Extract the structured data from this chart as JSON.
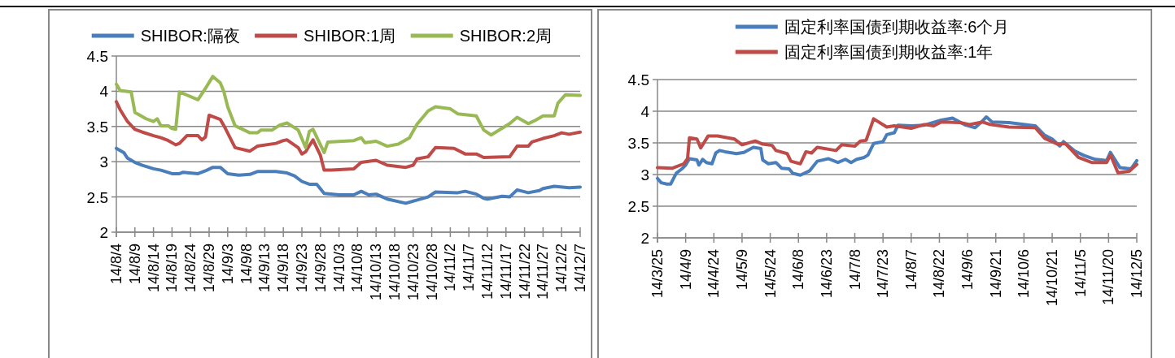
{
  "chart_data": [
    {
      "type": "line",
      "legend": "top",
      "grid": "y",
      "xlim": [
        "--08-04",
        "--12-07"
      ],
      "ylim": [
        2,
        4.5
      ],
      "yticks": [
        2,
        2.5,
        3,
        3.5,
        4,
        4.5
      ],
      "xticks": [
        {
          "value": "--08-04",
          "label": "14/8/4"
        },
        {
          "value": "--08-09",
          "label": "14/8/9"
        },
        {
          "value": "--08-14",
          "label": "14/8/14"
        },
        {
          "value": "--08-19",
          "label": "14/8/19"
        },
        {
          "value": "--08-24",
          "label": "14/8/24"
        },
        {
          "value": "--08-29",
          "label": "14/8/29"
        },
        {
          "value": "--09-03",
          "label": "14/9/3"
        },
        {
          "value": "--09-08",
          "label": "14/9/8"
        },
        {
          "value": "--09-13",
          "label": "14/9/13"
        },
        {
          "value": "--09-18",
          "label": "14/9/18"
        },
        {
          "value": "--09-23",
          "label": "14/9/23"
        },
        {
          "value": "--09-28",
          "label": "14/9/28"
        },
        {
          "value": "--10-03",
          "label": "14/10/3"
        },
        {
          "value": "--10-08",
          "label": "14/10/8"
        },
        {
          "value": "--10-13",
          "label": "14/10/13"
        },
        {
          "value": "--10-18",
          "label": "14/10/18"
        },
        {
          "value": "--10-23",
          "label": "14/10/23"
        },
        {
          "value": "--10-28",
          "label": "14/10/28"
        },
        {
          "value": "--11-02",
          "label": "14/11/2"
        },
        {
          "value": "--11-07",
          "label": "14/11/7"
        },
        {
          "value": "--11-12",
          "label": "14/11/12"
        },
        {
          "value": "--11-17",
          "label": "14/11/17"
        },
        {
          "value": "--11-22",
          "label": "14/11/22"
        },
        {
          "value": "--11-27",
          "label": "14/11/27"
        },
        {
          "value": "--12-02",
          "label": "14/12/2"
        },
        {
          "value": "--12-07",
          "label": "14/12/7"
        }
      ],
      "series": [
        {
          "name": "SHIBOR:隔夜",
          "color": "#4a7ebb",
          "x": [
            "--08-04",
            "--08-06",
            "--08-07",
            "--08-09",
            "--08-11",
            "--08-14",
            "--08-16",
            "--08-19",
            "--08-21",
            "--08-22",
            "--08-26",
            "--08-28",
            "--08-30",
            "--09-01",
            "--09-03",
            "--09-06",
            "--09-09",
            "--09-11",
            "--09-16",
            "--09-19",
            "--09-21",
            "--09-23",
            "--09-25",
            "--09-27",
            "--09-29",
            "--10-03",
            "--10-07",
            "--10-09",
            "--10-11",
            "--10-13",
            "--10-16",
            "--10-21",
            "--10-27",
            "--10-29",
            "--11-04",
            "--11-06",
            "--11-09",
            "--11-11",
            "--11-12",
            "--11-16",
            "--11-18",
            "--11-20",
            "--11-23",
            "--11-26",
            "--11-27",
            "--11-30",
            "--12-04",
            "--12-07"
          ],
          "values": [
            3.19,
            3.13,
            3.05,
            2.99,
            2.95,
            2.9,
            2.88,
            2.83,
            2.83,
            2.85,
            2.83,
            2.87,
            2.92,
            2.92,
            2.83,
            2.81,
            2.82,
            2.86,
            2.86,
            2.84,
            2.8,
            2.72,
            2.68,
            2.68,
            2.55,
            2.53,
            2.53,
            2.58,
            2.53,
            2.54,
            2.47,
            2.41,
            2.5,
            2.57,
            2.56,
            2.58,
            2.54,
            2.48,
            2.47,
            2.51,
            2.5,
            2.6,
            2.56,
            2.59,
            2.62,
            2.65,
            2.63,
            2.64
          ]
        },
        {
          "name": "SHIBOR:1周",
          "color": "#be4b48",
          "x": [
            "--08-04",
            "--08-05",
            "--08-07",
            "--08-09",
            "--08-11",
            "--08-14",
            "--08-16",
            "--08-18",
            "--08-20",
            "--08-21",
            "--08-23",
            "--08-26",
            "--08-27",
            "--08-28",
            "--08-29",
            "--09-01",
            "--09-02",
            "--09-05",
            "--09-09",
            "--09-11",
            "--09-16",
            "--09-18",
            "--09-19",
            "--09-22",
            "--09-23",
            "--09-24",
            "--09-26",
            "--09-28",
            "--09-29",
            "--10-01",
            "--10-07",
            "--10-09",
            "--10-13",
            "--10-16",
            "--10-21",
            "--10-23",
            "--10-24",
            "--10-27",
            "--10-29",
            "--11-03",
            "--11-06",
            "--11-09",
            "--11-11",
            "--11-18",
            "--11-20",
            "--11-23",
            "--11-24",
            "--11-27",
            "--11-30",
            "--12-02",
            "--12-04",
            "--12-07"
          ],
          "values": [
            3.85,
            3.74,
            3.57,
            3.46,
            3.42,
            3.37,
            3.34,
            3.3,
            3.24,
            3.26,
            3.37,
            3.37,
            3.31,
            3.35,
            3.66,
            3.6,
            3.51,
            3.2,
            3.15,
            3.22,
            3.26,
            3.3,
            3.31,
            3.2,
            3.11,
            3.14,
            3.31,
            3.09,
            2.88,
            2.88,
            2.9,
            2.99,
            3.02,
            2.95,
            2.92,
            2.95,
            3.04,
            3.07,
            3.2,
            3.19,
            3.11,
            3.11,
            3.06,
            3.07,
            3.22,
            3.22,
            3.28,
            3.33,
            3.37,
            3.41,
            3.39,
            3.42
          ]
        },
        {
          "name": "SHIBOR:2周",
          "color": "#98b954",
          "x": [
            "--08-04",
            "--08-05",
            "--08-08",
            "--08-09",
            "--08-12",
            "--08-14",
            "--08-15",
            "--08-16",
            "--08-18",
            "--08-19",
            "--08-20",
            "--08-21",
            "--08-26",
            "--08-28",
            "--08-30",
            "--09-01",
            "--09-02",
            "--09-03",
            "--09-05",
            "--09-09",
            "--09-11",
            "--09-12",
            "--09-15",
            "--09-17",
            "--09-19",
            "--09-22",
            "--09-24",
            "--09-25",
            "--09-26",
            "--09-29",
            "--09-30",
            "--10-07",
            "--10-09",
            "--10-10",
            "--10-13",
            "--10-16",
            "--10-19",
            "--10-22",
            "--10-24",
            "--10-27",
            "--10-29",
            "--11-02",
            "--11-04",
            "--11-09",
            "--11-11",
            "--11-13",
            "--11-18",
            "--11-20",
            "--11-23",
            "--11-25",
            "--11-27",
            "--11-30",
            "--12-01",
            "--12-03",
            "--12-07"
          ],
          "values": [
            4.1,
            4.01,
            3.99,
            3.7,
            3.61,
            3.57,
            3.61,
            3.51,
            3.51,
            3.47,
            3.46,
            3.99,
            3.88,
            4.04,
            4.21,
            4.12,
            3.99,
            3.78,
            3.51,
            3.41,
            3.41,
            3.45,
            3.45,
            3.52,
            3.55,
            3.45,
            3.2,
            3.43,
            3.46,
            3.13,
            3.28,
            3.3,
            3.34,
            3.27,
            3.29,
            3.22,
            3.25,
            3.34,
            3.53,
            3.72,
            3.78,
            3.75,
            3.68,
            3.65,
            3.45,
            3.38,
            3.54,
            3.63,
            3.54,
            3.59,
            3.65,
            3.65,
            3.83,
            3.95,
            3.94
          ]
        }
      ]
    },
    {
      "type": "line",
      "legend": "top",
      "grid": "y",
      "xlim": [
        "--03-25",
        "--12-05"
      ],
      "ylim": [
        2,
        4.5
      ],
      "yticks": [
        2,
        2.5,
        3,
        3.5,
        4,
        4.5
      ],
      "xticks": [
        {
          "value": "--03-25",
          "label": "14/3/25"
        },
        {
          "value": "--04-09",
          "label": "14/4/9"
        },
        {
          "value": "--04-24",
          "label": "14/4/24"
        },
        {
          "value": "--05-09",
          "label": "14/5/9"
        },
        {
          "value": "--05-24",
          "label": "14/5/24"
        },
        {
          "value": "--06-08",
          "label": "14/6/8"
        },
        {
          "value": "--06-23",
          "label": "14/6/23"
        },
        {
          "value": "--07-08",
          "label": "14/7/8"
        },
        {
          "value": "--07-23",
          "label": "14/7/23"
        },
        {
          "value": "--08-07",
          "label": "14/8/7"
        },
        {
          "value": "--08-22",
          "label": "14/8/22"
        },
        {
          "value": "--09-06",
          "label": "14/9/6"
        },
        {
          "value": "--09-21",
          "label": "14/9/21"
        },
        {
          "value": "--10-06",
          "label": "14/10/6"
        },
        {
          "value": "--10-21",
          "label": "14/10/21"
        },
        {
          "value": "--11-05",
          "label": "14/11/5"
        },
        {
          "value": "--11-20",
          "label": "14/11/20"
        },
        {
          "value": "--12-05",
          "label": "14/12/5"
        }
      ],
      "series": [
        {
          "name": "固定利率国债到期收益率:6个月",
          "color": "#4a7ebb",
          "x": [
            "--03-25",
            "--03-27",
            "--03-30",
            "--04-01",
            "--04-04",
            "--04-07",
            "--04-09",
            "--04-11",
            "--04-15",
            "--04-16",
            "--04-18",
            "--04-20",
            "--04-23",
            "--04-25",
            "--04-27",
            "--04-30",
            "--05-06",
            "--05-10",
            "--05-15",
            "--05-19",
            "--05-20",
            "--05-23",
            "--05-27",
            "--05-30",
            "--06-03",
            "--06-05",
            "--06-09",
            "--06-14",
            "--06-18",
            "--06-24",
            "--06-29",
            "--07-03",
            "--07-06",
            "--07-09",
            "--07-13",
            "--07-15",
            "--07-18",
            "--07-23",
            "--07-25",
            "--07-29",
            "--07-31",
            "--08-07",
            "--08-14",
            "--08-23",
            "--08-29",
            "--09-05",
            "--09-10",
            "--09-13",
            "--09-16",
            "--09-19",
            "--09-28",
            "--10-12",
            "--10-17",
            "--10-21",
            "--10-25",
            "--10-27",
            "--11-02",
            "--11-07",
            "--11-13",
            "--11-19",
            "--11-21",
            "--11-26",
            "--12-02",
            "--12-05"
          ],
          "values": [
            2.94,
            2.87,
            2.85,
            2.85,
            3.02,
            3.09,
            3.15,
            3.25,
            3.23,
            3.15,
            3.24,
            3.19,
            3.17,
            3.34,
            3.38,
            3.36,
            3.33,
            3.35,
            3.43,
            3.41,
            3.23,
            3.17,
            3.19,
            3.1,
            3.09,
            3.02,
            2.99,
            3.06,
            3.21,
            3.25,
            3.19,
            3.24,
            3.19,
            3.24,
            3.27,
            3.31,
            3.49,
            3.52,
            3.63,
            3.66,
            3.78,
            3.77,
            3.78,
            3.86,
            3.89,
            3.78,
            3.74,
            3.82,
            3.91,
            3.83,
            3.82,
            3.77,
            3.62,
            3.56,
            3.45,
            3.52,
            3.37,
            3.3,
            3.24,
            3.22,
            3.35,
            3.11,
            3.09,
            3.22
          ]
        },
        {
          "name": "固定利率国债到期收益率:1年",
          "color": "#be4b48",
          "x": [
            "--03-25",
            "--04-02",
            "--04-08",
            "--04-10",
            "--04-11",
            "--04-15",
            "--04-17",
            "--04-21",
            "--04-26",
            "--05-05",
            "--05-09",
            "--05-16",
            "--05-20",
            "--05-25",
            "--05-27",
            "--06-02",
            "--06-04",
            "--06-09",
            "--06-12",
            "--06-15",
            "--06-18",
            "--06-28",
            "--07-01",
            "--07-08",
            "--07-11",
            "--07-14",
            "--07-18",
            "--07-25",
            "--07-29",
            "--08-07",
            "--08-14",
            "--08-19",
            "--08-23",
            "--09-02",
            "--09-07",
            "--09-14",
            "--09-18",
            "--09-28",
            "--10-12",
            "--10-17",
            "--10-24",
            "--10-28",
            "--11-04",
            "--11-11",
            "--11-19",
            "--11-21",
            "--11-25",
            "--12-01",
            "--12-05"
          ],
          "values": [
            3.11,
            3.1,
            3.17,
            3.25,
            3.58,
            3.56,
            3.42,
            3.61,
            3.61,
            3.56,
            3.47,
            3.53,
            3.48,
            3.46,
            3.38,
            3.33,
            3.21,
            3.17,
            3.36,
            3.34,
            3.43,
            3.38,
            3.47,
            3.45,
            3.53,
            3.54,
            3.88,
            3.75,
            3.77,
            3.73,
            3.79,
            3.77,
            3.83,
            3.82,
            3.79,
            3.83,
            3.79,
            3.75,
            3.74,
            3.57,
            3.48,
            3.49,
            3.27,
            3.19,
            3.19,
            3.31,
            3.03,
            3.05,
            3.16
          ]
        }
      ]
    }
  ]
}
